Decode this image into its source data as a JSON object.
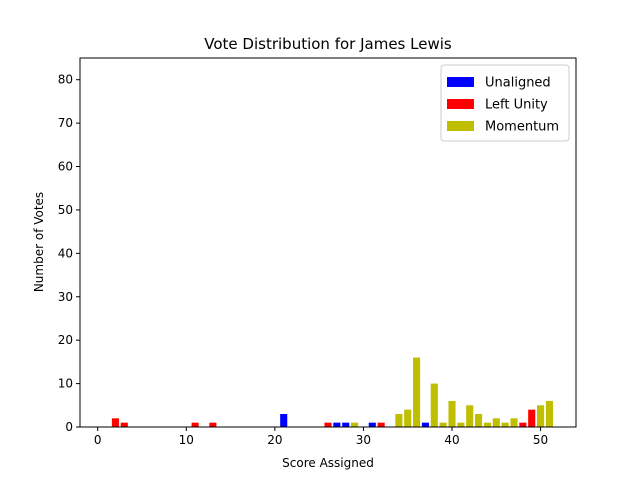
{
  "chart_data": {
    "type": "bar",
    "title": "Vote Distribution for James Lewis",
    "xlabel": "Score Assigned",
    "ylabel": "Number of Votes",
    "xlim": [
      -2,
      54
    ],
    "ylim": [
      0,
      85
    ],
    "xticks": [
      0,
      10,
      20,
      30,
      40,
      50
    ],
    "yticks": [
      0,
      10,
      20,
      30,
      40,
      50,
      60,
      70,
      80
    ],
    "grid": false,
    "legend_position": "top-right",
    "series": [
      {
        "name": "Unaligned",
        "color": "#0000ff",
        "points": [
          {
            "x": 21,
            "y": 3
          },
          {
            "x": 27,
            "y": 1
          },
          {
            "x": 28,
            "y": 1
          },
          {
            "x": 31,
            "y": 1
          },
          {
            "x": 37,
            "y": 1
          }
        ]
      },
      {
        "name": "Left Unity",
        "color": "#ff0000",
        "points": [
          {
            "x": 2,
            "y": 2
          },
          {
            "x": 3,
            "y": 1
          },
          {
            "x": 11,
            "y": 1
          },
          {
            "x": 13,
            "y": 1
          },
          {
            "x": 26,
            "y": 1
          },
          {
            "x": 32,
            "y": 1
          },
          {
            "x": 48,
            "y": 1
          },
          {
            "x": 49,
            "y": 4
          }
        ]
      },
      {
        "name": "Momentum",
        "color": "#bfbf00",
        "points": [
          {
            "x": 29,
            "y": 1
          },
          {
            "x": 34,
            "y": 3
          },
          {
            "x": 35,
            "y": 4
          },
          {
            "x": 36,
            "y": 16
          },
          {
            "x": 38,
            "y": 10
          },
          {
            "x": 39,
            "y": 1
          },
          {
            "x": 40,
            "y": 6
          },
          {
            "x": 41,
            "y": 1
          },
          {
            "x": 42,
            "y": 5
          },
          {
            "x": 43,
            "y": 3
          },
          {
            "x": 44,
            "y": 1
          },
          {
            "x": 45,
            "y": 2
          },
          {
            "x": 46,
            "y": 1
          },
          {
            "x": 47,
            "y": 2
          },
          {
            "x": 50,
            "y": 5
          },
          {
            "x": 51,
            "y": 6
          }
        ]
      }
    ]
  }
}
